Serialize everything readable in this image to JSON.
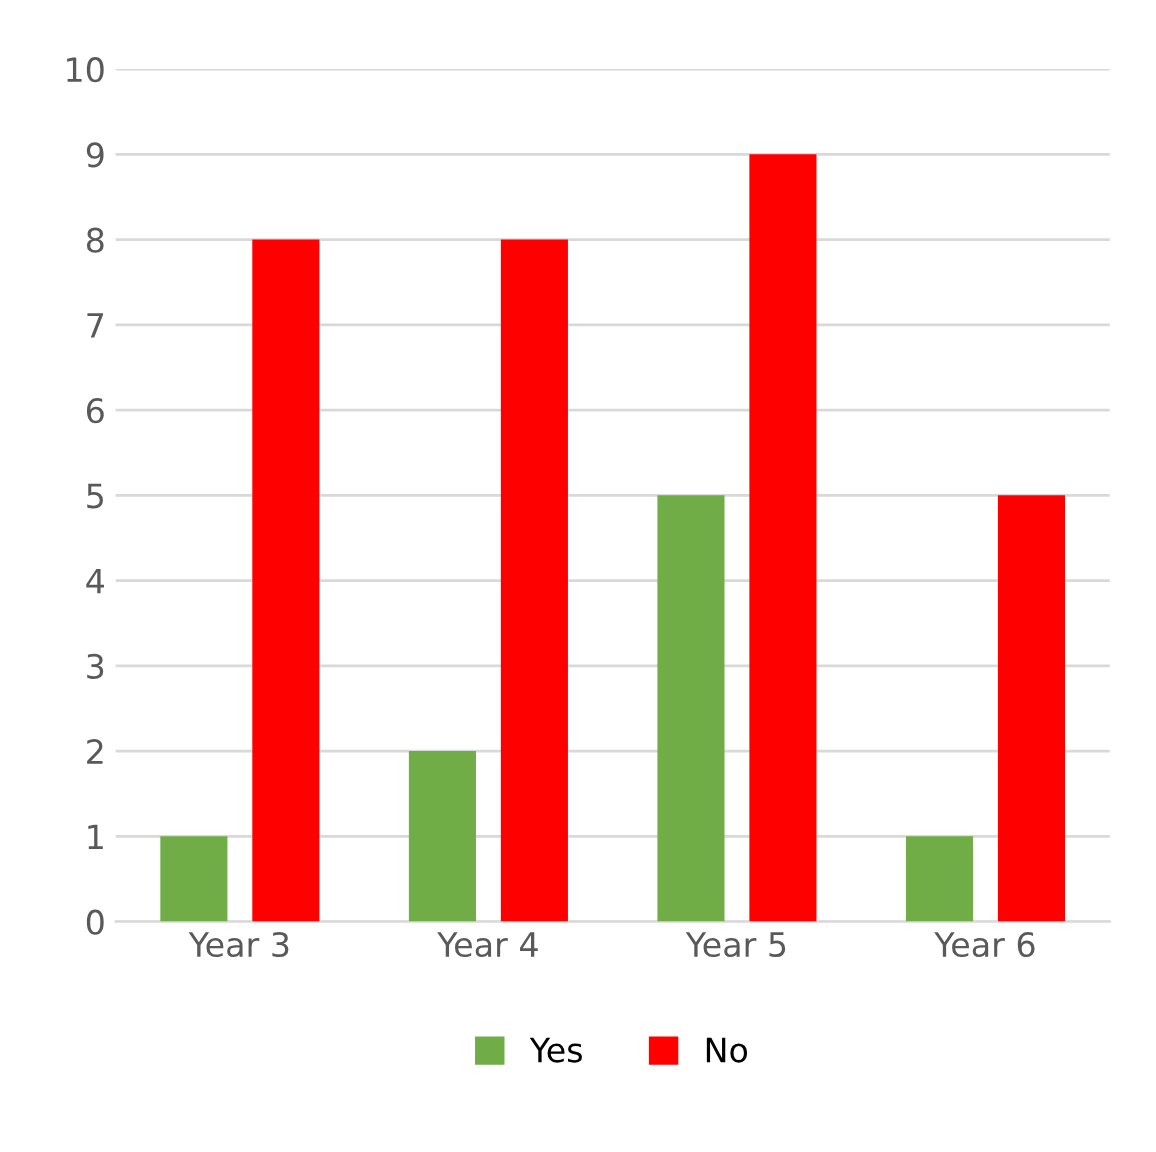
{
  "chart_data": {
    "type": "bar",
    "categories": [
      "Year 3",
      "Year 4",
      "Year 5",
      "Year 6"
    ],
    "series": [
      {
        "name": "Yes",
        "color": "#70ad47",
        "values": [
          1,
          2,
          5,
          1
        ]
      },
      {
        "name": "No",
        "color": "#ff0000",
        "values": [
          8,
          8,
          9,
          5
        ]
      }
    ],
    "ylim": [
      0,
      10
    ],
    "yticks": [
      0,
      1,
      2,
      3,
      4,
      5,
      6,
      7,
      8,
      9,
      10
    ],
    "grid": "y",
    "legend": "bottom"
  }
}
